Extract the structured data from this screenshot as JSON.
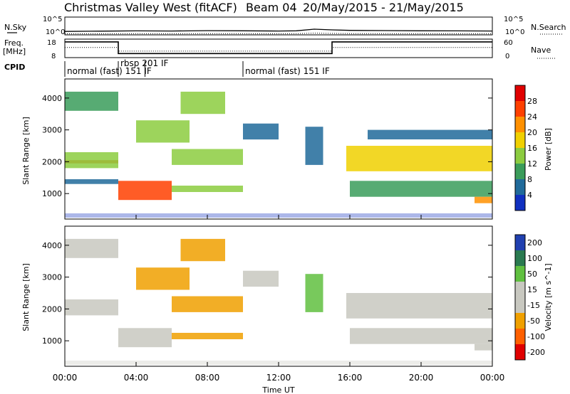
{
  "header": {
    "title": "Christmas Valley West (fitACF)",
    "beam": "Beam 04",
    "date_range": "20/May/2015 - 21/May/2015"
  },
  "legend_labels": {
    "n_sky": "N.Sky",
    "n_search": "N.Search",
    "freq_line1": "Freq.",
    "freq_line2": "[MHz]",
    "nave": "Nave",
    "cpid": "CPID"
  },
  "chart_data": [
    {
      "type": "line",
      "name": "noise-panel",
      "y_scale": "log",
      "ylim_left": [
        1,
        100000
      ],
      "left_ticks": [
        "10^5",
        "10^0"
      ],
      "right_ticks": [
        "10^5",
        "10^0"
      ],
      "x": [
        0,
        2,
        4,
        6,
        8,
        10,
        12,
        13,
        14,
        15,
        16,
        18,
        20,
        22,
        24
      ],
      "series": [
        {
          "name": "N.Sky",
          "values": [
            9,
            11,
            13,
            12,
            15,
            14,
            12,
            14,
            40,
            25,
            18,
            16,
            14,
            13,
            12
          ]
        },
        {
          "name": "N.Search",
          "values": [
            2,
            2,
            2.2,
            2.1,
            2.3,
            2.2,
            2,
            2.2,
            3,
            2.5,
            2.3,
            2.2,
            2.1,
            2,
            2
          ]
        }
      ]
    },
    {
      "type": "line",
      "name": "frequency-panel",
      "ylim_left": [
        8,
        18
      ],
      "left_ticks": [
        "18",
        "8"
      ],
      "right_ticks": [
        "60",
        "0"
      ],
      "x": [
        0,
        3,
        3,
        15,
        15,
        24
      ],
      "series": [
        {
          "name": "Freq.",
          "values": [
            16.5,
            16.5,
            10.2,
            10.2,
            16.5,
            16.5
          ]
        },
        {
          "name": "Nave",
          "values": [
            13.5,
            13.5,
            11.5,
            11.5,
            13.5,
            13.5
          ]
        }
      ]
    },
    {
      "type": "table",
      "name": "cpid-panel",
      "segments": [
        {
          "start": 0,
          "end": 3,
          "label": "normal (fast) 151 IF"
        },
        {
          "start": 3,
          "end": 4.5,
          "label": "rbsp 201 IF"
        },
        {
          "start": 4.5,
          "end": 10,
          "label": ""
        },
        {
          "start": 10,
          "end": 24,
          "label": "normal (fast) 151 IF"
        }
      ]
    },
    {
      "type": "heatmap",
      "name": "power-panel",
      "ylabel": "Slant Range [km]",
      "xlim": [
        0,
        24
      ],
      "ylim": [
        200,
        4600
      ],
      "yticks": [
        1000,
        2000,
        3000,
        4000
      ],
      "colorbar_label": "Power [dB]",
      "colorbar_ticks": [
        "28",
        "24",
        "20",
        "16",
        "12",
        "8",
        "4"
      ],
      "bands": [
        {
          "x0": 0,
          "x1": 3,
          "y0": 1950,
          "y1": 2050,
          "level": 0.8
        },
        {
          "x0": 0,
          "x1": 3,
          "y0": 1800,
          "y1": 2300,
          "level": 0.5
        },
        {
          "x0": 0,
          "x1": 3,
          "y0": 3600,
          "y1": 4200,
          "level": 0.3
        },
        {
          "x0": 0,
          "x1": 3,
          "y0": 1300,
          "y1": 1450,
          "level": 0.2
        },
        {
          "x0": 3,
          "x1": 6,
          "y0": 800,
          "y1": 1400,
          "level": 0.85
        },
        {
          "x0": 4,
          "x1": 7,
          "y0": 2600,
          "y1": 3300,
          "level": 0.45
        },
        {
          "x0": 6,
          "x1": 10,
          "y0": 1900,
          "y1": 2400,
          "level": 0.5
        },
        {
          "x0": 6,
          "x1": 10,
          "y0": 1050,
          "y1": 1250,
          "level": 0.4
        },
        {
          "x0": 6.5,
          "x1": 9,
          "y0": 3500,
          "y1": 4200,
          "level": 0.45
        },
        {
          "x0": 10,
          "x1": 12,
          "y0": 2700,
          "y1": 3200,
          "level": 0.15
        },
        {
          "x0": 13.5,
          "x1": 14.5,
          "y0": 1900,
          "y1": 3100,
          "level": 0.15
        },
        {
          "x0": 15.8,
          "x1": 24,
          "y0": 1700,
          "y1": 2500,
          "level": 0.6
        },
        {
          "x0": 16,
          "x1": 24,
          "y0": 900,
          "y1": 1400,
          "level": 0.25
        },
        {
          "x0": 17,
          "x1": 24,
          "y0": 2700,
          "y1": 3000,
          "level": 0.2
        },
        {
          "x0": 23,
          "x1": 24,
          "y0": 700,
          "y1": 900,
          "level": 0.7
        }
      ]
    },
    {
      "type": "heatmap",
      "name": "velocity-panel",
      "ylabel": "Slant Range [km]",
      "xlabel": "Time UT",
      "xlim": [
        0,
        24
      ],
      "ylim": [
        200,
        4600
      ],
      "yticks": [
        1000,
        2000,
        3000,
        4000
      ],
      "xticks": [
        "00:00",
        "04:00",
        "08:00",
        "12:00",
        "16:00",
        "20:00",
        "00:00"
      ],
      "colorbar_label": "Velocity [m s^-1]",
      "colorbar_ticks": [
        "200",
        "100",
        "50",
        "15",
        "-15",
        "-50",
        "-100",
        "-200"
      ],
      "bands": [
        {
          "x0": 0,
          "x1": 3,
          "y0": 1800,
          "y1": 2300,
          "level": "-15"
        },
        {
          "x0": 0,
          "x1": 3,
          "y0": 3600,
          "y1": 4200,
          "level": "-15"
        },
        {
          "x0": 3,
          "x1": 6,
          "y0": 800,
          "y1": 1400,
          "level": "-15"
        },
        {
          "x0": 4,
          "x1": 7,
          "y0": 2600,
          "y1": 3300,
          "level": "-50"
        },
        {
          "x0": 6,
          "x1": 10,
          "y0": 1900,
          "y1": 2400,
          "level": "-50"
        },
        {
          "x0": 6,
          "x1": 10,
          "y0": 1050,
          "y1": 1250,
          "level": "-50"
        },
        {
          "x0": 6.5,
          "x1": 9,
          "y0": 3500,
          "y1": 4200,
          "level": "-50"
        },
        {
          "x0": 10,
          "x1": 12,
          "y0": 2700,
          "y1": 3200,
          "level": "-15"
        },
        {
          "x0": 13.5,
          "x1": 14.5,
          "y0": 1900,
          "y1": 3100,
          "level": "50"
        },
        {
          "x0": 15.8,
          "x1": 24,
          "y0": 1700,
          "y1": 2500,
          "level": "-15"
        },
        {
          "x0": 16,
          "x1": 24,
          "y0": 900,
          "y1": 1400,
          "level": "15"
        },
        {
          "x0": 23,
          "x1": 24,
          "y0": 700,
          "y1": 900,
          "level": "-15"
        }
      ]
    }
  ],
  "colors": {
    "power_scale": [
      "#e00000",
      "#ff4000",
      "#ff9000",
      "#f0d000",
      "#8ccc40",
      "#3a9c5a",
      "#206a9a",
      "#1030c0"
    ],
    "velocity_scale": [
      "#2040b0",
      "#2a7a50",
      "#60c040",
      "#c8c8c0",
      "#c8c8c0",
      "#f0a000",
      "#ff6000",
      "#e00000"
    ]
  }
}
